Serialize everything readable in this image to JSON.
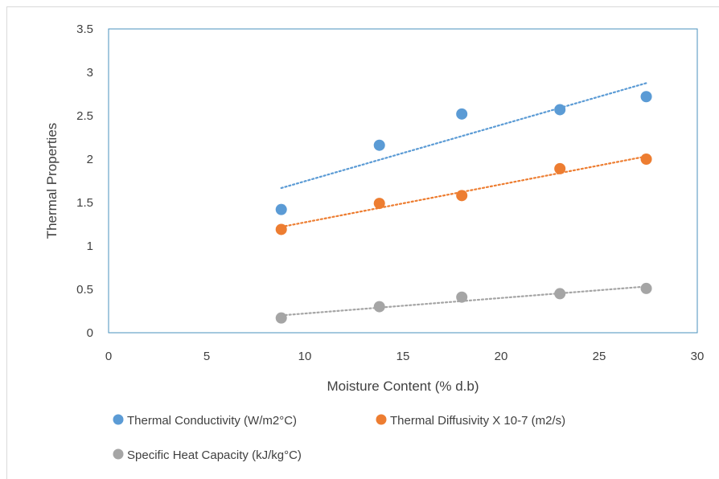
{
  "chart_data": {
    "type": "scatter",
    "title": "",
    "xlabel": "Moisture Content (% d.b)",
    "ylabel": "Thermal Properties",
    "xlim": [
      0,
      30
    ],
    "ylim": [
      0,
      3.5
    ],
    "xticks": [
      "0",
      "5",
      "10",
      "15",
      "20",
      "25",
      "30"
    ],
    "yticks": [
      "0",
      "0.5",
      "1",
      "1.5",
      "2",
      "2.5",
      "3",
      "3.5"
    ],
    "grid": false,
    "trendlines": true,
    "legend_position": "bottom",
    "series": [
      {
        "name": "Thermal Conductivity  (W/m2°C)",
        "color": "#5b9bd5",
        "x": [
          8.8,
          13.8,
          18.0,
          23.0,
          27.4
        ],
        "y": [
          1.42,
          2.16,
          2.52,
          2.57,
          2.72
        ]
      },
      {
        "name": "Thermal Diffusivity X 10-7 (m2/s)",
        "color": "#ed7d31",
        "x": [
          8.8,
          13.8,
          18.0,
          23.0,
          27.4
        ],
        "y": [
          1.19,
          1.49,
          1.58,
          1.89,
          2.0
        ]
      },
      {
        "name": "Specific  Heat Capacity  (kJ/kg°C)",
        "color": "#a5a5a5",
        "x": [
          8.8,
          13.8,
          18.0,
          23.0,
          27.4
        ],
        "y": [
          0.17,
          0.3,
          0.41,
          0.45,
          0.51
        ]
      }
    ]
  }
}
